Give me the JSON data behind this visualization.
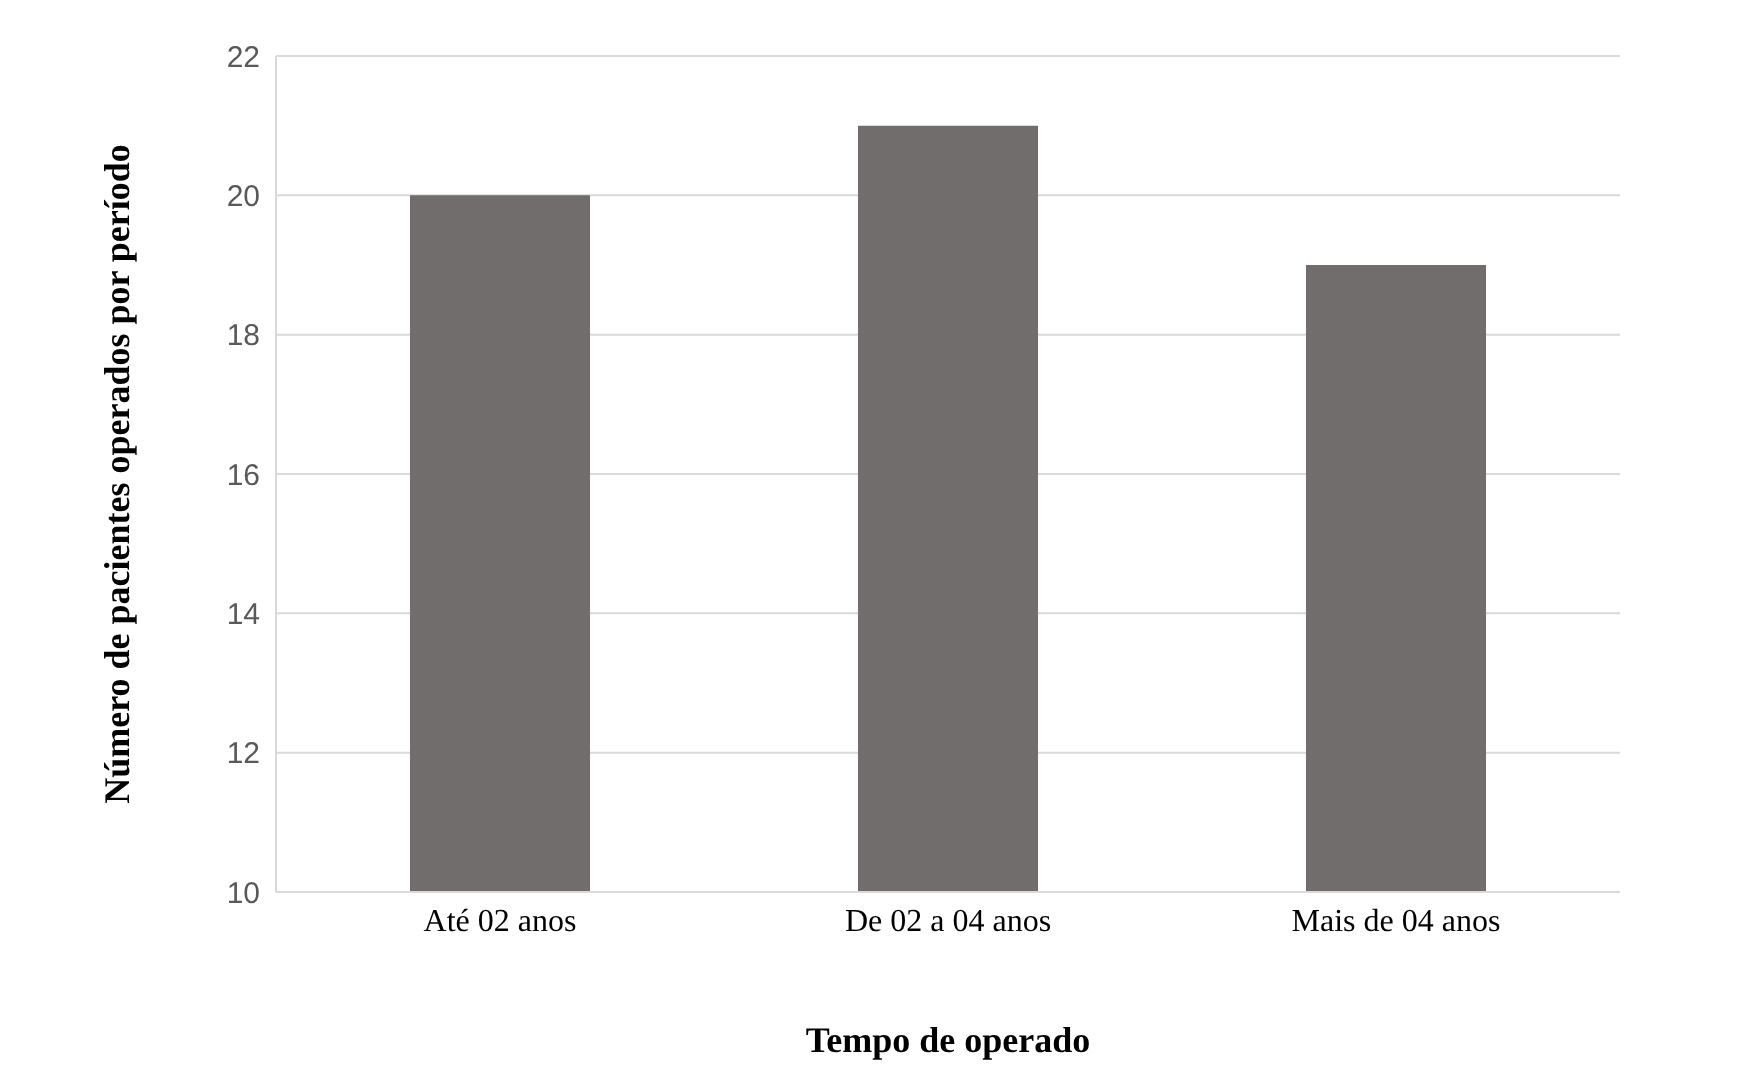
{
  "chart_data": {
    "type": "bar",
    "xlabel": "Tempo de operado",
    "ylabel": "Número de pacientes operados por período",
    "categories": [
      "Até 02 anos",
      "De 02 a 04 anos",
      "Mais de 04 anos"
    ],
    "values": [
      20,
      21,
      19
    ],
    "color": "#716d6c",
    "ylim": [
      10,
      22
    ],
    "yticks": [
      10,
      12,
      14,
      16,
      18,
      20,
      22
    ],
    "grid": "y"
  }
}
